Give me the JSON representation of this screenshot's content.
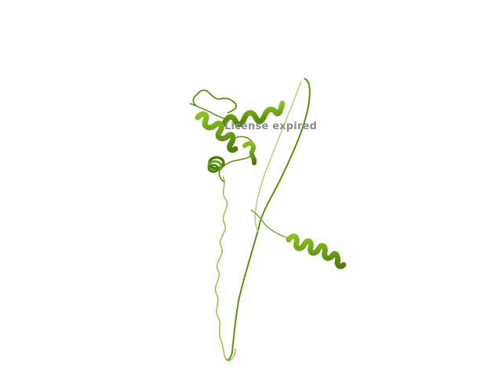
{
  "viewer": {
    "watermark_text": "License expired",
    "background_color": "#ffffff",
    "ribbon_color": "#6aa413",
    "ribbon_dark_color": "#4e7d0c",
    "coil_light_color": "#b5cf82",
    "watermark_color": "#8c8c8c"
  }
}
